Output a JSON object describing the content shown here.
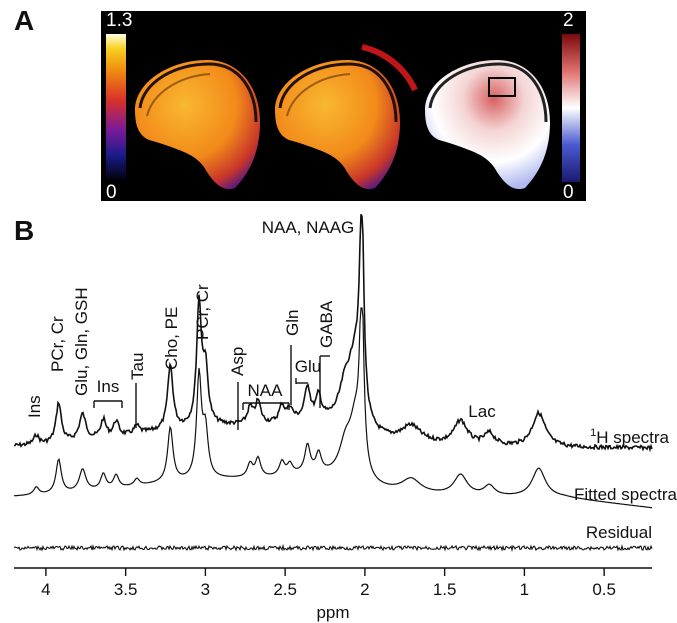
{
  "panel_a": {
    "label": "A",
    "colorbar_left": {
      "max": "1.3",
      "min": "0"
    },
    "colorbar_right": {
      "max": "2",
      "min": "0"
    }
  },
  "panel_b": {
    "label": "B"
  },
  "chart_data": {
    "type": "line",
    "xlabel": "ppm",
    "xlim": [
      4.2,
      0.2
    ],
    "x_ticks": [
      4,
      3.5,
      3,
      2.5,
      2,
      1.5,
      1,
      0.5
    ],
    "series": [
      {
        "name": "1H spectra"
      },
      {
        "name": "Fitted spectra"
      },
      {
        "name": "Residual"
      }
    ],
    "peak_labels": [
      {
        "text": "Ins",
        "ppm": 4.05
      },
      {
        "text": "PCr, Cr",
        "ppm": 3.92
      },
      {
        "text": "Glu, Gln, GSH",
        "ppm": 3.76
      },
      {
        "text": "Ins",
        "ppm": 3.6
      },
      {
        "text": "Tau",
        "ppm": 3.42
      },
      {
        "text": "Cho, PE",
        "ppm": 3.22
      },
      {
        "text": "PCr, Cr",
        "ppm": 3.03
      },
      {
        "text": "Asp",
        "ppm": 2.8
      },
      {
        "text": "NAA",
        "ppm": 2.6
      },
      {
        "text": "Gln",
        "ppm": 2.45
      },
      {
        "text": "Glu",
        "ppm": 2.35
      },
      {
        "text": "GABA",
        "ppm": 2.29
      },
      {
        "text": "NAA, NAAG",
        "ppm": 2.01
      },
      {
        "text": "Lac",
        "ppm": 1.35
      }
    ]
  }
}
